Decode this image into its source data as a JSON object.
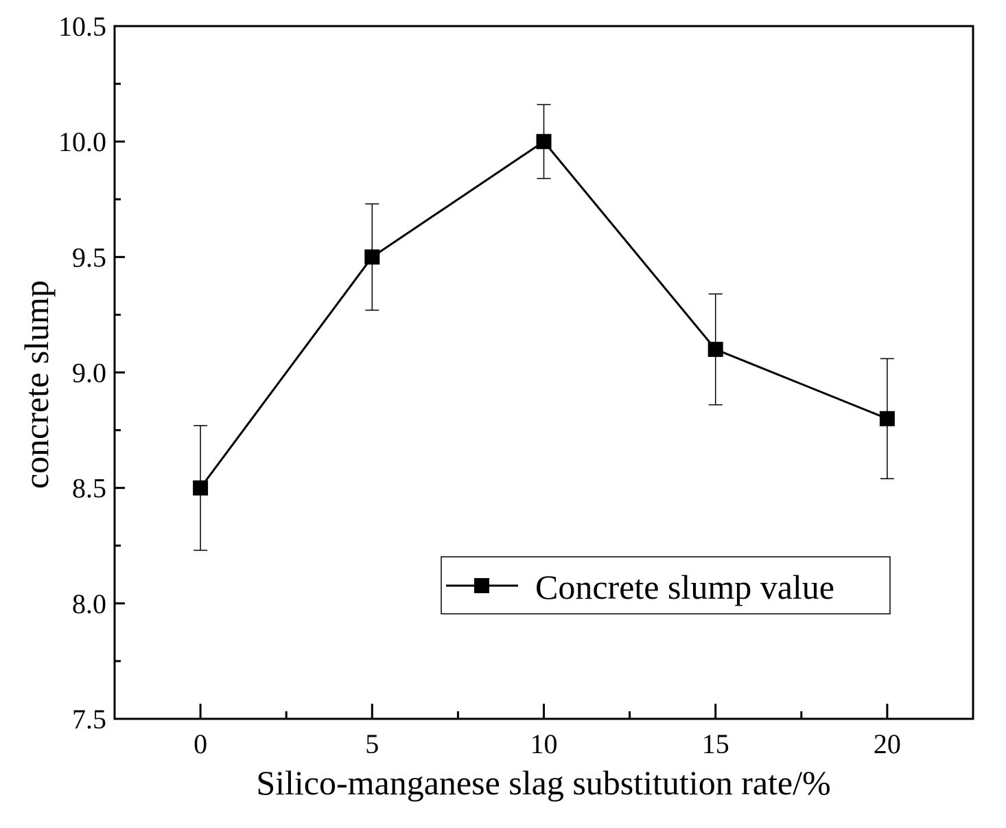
{
  "chart_data": {
    "type": "line",
    "title": "",
    "xlabel": "Silico-manganese slag substitution rate/%",
    "ylabel": "concrete slump",
    "xlim": [
      -2.5,
      22.5
    ],
    "ylim": [
      7.5,
      10.5
    ],
    "x_ticks": [
      0,
      5,
      10,
      15,
      20
    ],
    "x_tick_labels": [
      "0",
      "5",
      "10",
      "15",
      "20"
    ],
    "y_ticks": [
      7.5,
      8.0,
      8.5,
      9.0,
      9.5,
      10.0,
      10.5
    ],
    "y_tick_labels": [
      "7.5",
      "8.0",
      "8.5",
      "9.0",
      "9.5",
      "10.0",
      "10.5"
    ],
    "y_minor_ticks": [
      7.75,
      8.25,
      8.75,
      9.25,
      9.75,
      10.25
    ],
    "x_minor_ticks": [
      2.5,
      7.5,
      12.5,
      17.5
    ],
    "grid": false,
    "legend_position": "lower-right",
    "series": [
      {
        "name": "Concrete slump value",
        "marker": "square",
        "color": "#000000",
        "x": [
          0,
          5,
          10,
          15,
          20
        ],
        "values": [
          8.5,
          9.5,
          10.0,
          9.1,
          8.8
        ],
        "error": [
          0.27,
          0.23,
          0.16,
          0.24,
          0.26
        ]
      }
    ]
  }
}
